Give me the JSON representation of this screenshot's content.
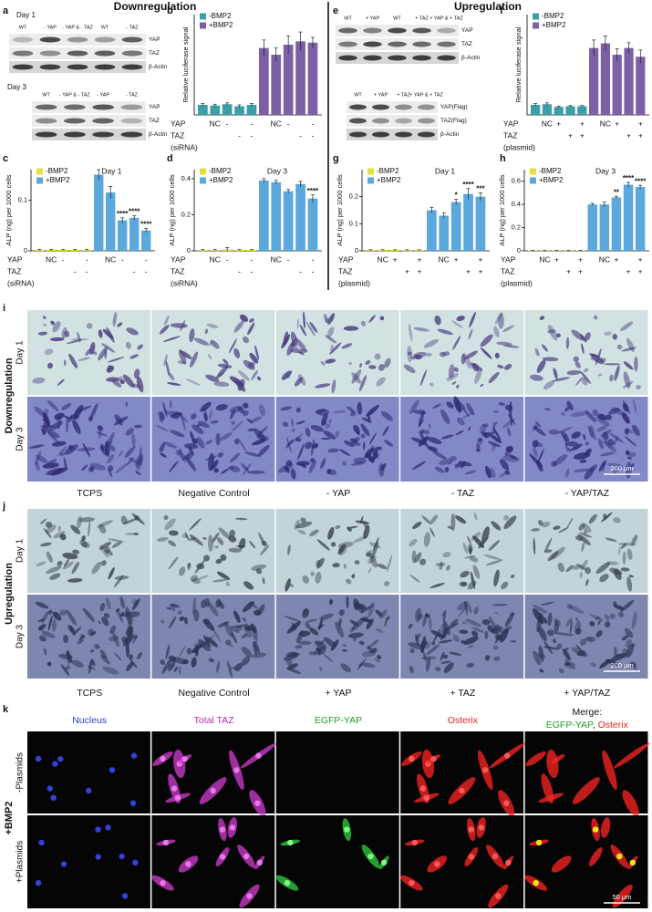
{
  "headers": {
    "left": "Downregulation",
    "right": "Upregulation"
  },
  "panel_labels": [
    "a",
    "b",
    "c",
    "d",
    "e",
    "f",
    "g",
    "h",
    "i",
    "j",
    "k"
  ],
  "blots": [
    {
      "title": "Day 1",
      "lanes": [
        "WT",
        "- YAP",
        "- YAP & - TAZ",
        "WT",
        "- TAZ"
      ],
      "rows": [
        "YAP",
        "TAZ",
        "β-Actin"
      ]
    },
    {
      "title": "Day 3",
      "lanes": [
        "WT",
        "- YAP & - TAZ",
        "- YAP",
        "- TAZ"
      ],
      "rows": [
        "YAP",
        "TAZ",
        "β-Actin"
      ]
    },
    {
      "lanes": [
        "WT",
        "+ YAP",
        "WT",
        "+ TAZ",
        "+ YAP & + TAZ"
      ],
      "rows": [
        "YAP",
        "TAZ",
        "β-Actin"
      ]
    },
    {
      "lanes": [
        "WT",
        "+ YAP",
        "+ TAZ",
        "+ YAP & + TAZ"
      ],
      "rows": [
        "YAP(Flag)",
        "TAZ(Flag)",
        "β-Actin"
      ]
    }
  ],
  "chart_data": [
    {
      "type": "bar",
      "ylabel": "Relative luciferase signal",
      "ylim": [
        0,
        1.5
      ],
      "series": [
        {
          "name": "-BMP2",
          "color": "#3c9ea6",
          "values": [
            0.15,
            0.14,
            0.16,
            0.13,
            0.15
          ],
          "errors": [
            0.02,
            0.02,
            0.02,
            0.02,
            0.02
          ]
        },
        {
          "name": "+BMP2",
          "color": "#7d5fa6",
          "values": [
            1.0,
            0.9,
            1.05,
            1.1,
            1.08
          ],
          "errors": [
            0.12,
            0.1,
            0.13,
            0.14,
            0.08
          ]
        }
      ],
      "conditions": [
        {
          "name": "YAP",
          "labels": [
            null,
            "NC",
            "-",
            null,
            "-"
          ]
        },
        {
          "name": "TAZ",
          "labels": [
            null,
            null,
            null,
            "-",
            "-"
          ]
        }
      ],
      "condition_note": "(siRNA)"
    },
    {
      "type": "bar",
      "title": "Day 1",
      "ylabel": "ALP (ng) per 1000 cells",
      "ylim": [
        0,
        0.16
      ],
      "yticks": [
        0,
        0.1
      ],
      "series": [
        {
          "name": "-BMP2",
          "color": "#e6e03c",
          "values": [
            0.002,
            0.002,
            0.002,
            0.002,
            0.002
          ],
          "errors": [
            0.001,
            0.001,
            0.001,
            0.001,
            0.001
          ]
        },
        {
          "name": "+BMP2",
          "color": "#5ca7dc",
          "values": [
            0.15,
            0.115,
            0.06,
            0.065,
            0.04
          ],
          "errors": [
            0.01,
            0.012,
            0.005,
            0.004,
            0.004
          ],
          "significance": [
            null,
            null,
            "****",
            "****",
            "****"
          ]
        }
      ],
      "conditions": [
        {
          "name": "YAP",
          "labels": [
            null,
            "NC",
            "-",
            null,
            "-"
          ]
        },
        {
          "name": "TAZ",
          "labels": [
            null,
            null,
            null,
            "-",
            "-"
          ]
        }
      ],
      "condition_note": "(siRNA)"
    },
    {
      "type": "bar",
      "title": "Day 3",
      "ylabel": "ALP (ng) per 1000 cells",
      "ylim": [
        0,
        0.45
      ],
      "yticks": [
        0,
        0.2,
        0.4
      ],
      "series": [
        {
          "name": "-BMP2",
          "color": "#e6e03c",
          "values": [
            0.005,
            0.005,
            0.008,
            0.005,
            0.005
          ],
          "errors": [
            0.002,
            0.002,
            0.01,
            0.002,
            0.002
          ]
        },
        {
          "name": "+BMP2",
          "color": "#5ca7dc",
          "values": [
            0.39,
            0.38,
            0.33,
            0.37,
            0.29
          ],
          "errors": [
            0.01,
            0.01,
            0.01,
            0.015,
            0.02
          ],
          "significance": [
            null,
            null,
            null,
            null,
            "****"
          ]
        }
      ],
      "conditions": [
        {
          "name": "YAP",
          "labels": [
            null,
            "NC",
            "-",
            null,
            "-"
          ]
        },
        {
          "name": "TAZ",
          "labels": [
            null,
            null,
            null,
            "-",
            "-"
          ]
        }
      ],
      "condition_note": "(siRNA)"
    },
    {
      "type": "bar",
      "ylabel": "Relative luciferase signal",
      "ylim": [
        0,
        1.5
      ],
      "series": [
        {
          "name": "-BMP2",
          "color": "#3c9ea6",
          "values": [
            0.15,
            0.16,
            0.12,
            0.13,
            0.13
          ],
          "errors": [
            0.02,
            0.02,
            0.01,
            0.01,
            0.01
          ]
        },
        {
          "name": "+BMP2",
          "color": "#7d5fa6",
          "values": [
            1.0,
            1.07,
            0.9,
            1.0,
            0.87
          ],
          "errors": [
            0.12,
            0.11,
            0.09,
            0.08,
            0.1
          ]
        }
      ],
      "conditions": [
        {
          "name": "YAP",
          "labels": [
            null,
            "NC",
            "+",
            null,
            "+"
          ]
        },
        {
          "name": "TAZ",
          "labels": [
            null,
            null,
            null,
            "+",
            "+"
          ]
        }
      ],
      "condition_note": "(plasmid)"
    },
    {
      "type": "bar",
      "title": "Day 1",
      "ylabel": "ALP (ng) per 1000 cells",
      "ylim": [
        0,
        0.3
      ],
      "yticks": [
        0,
        0.1,
        0.2
      ],
      "series": [
        {
          "name": "-BMP2",
          "color": "#e6e03c",
          "values": [
            0.003,
            0.003,
            0.003,
            0.003,
            0.003
          ],
          "errors": [
            0.001,
            0.001,
            0.001,
            0.001,
            0.001
          ]
        },
        {
          "name": "+BMP2",
          "color": "#5ca7dc",
          "values": [
            0.15,
            0.13,
            0.18,
            0.21,
            0.2
          ],
          "errors": [
            0.01,
            0.01,
            0.01,
            0.02,
            0.015
          ],
          "significance": [
            null,
            null,
            "*",
            "****",
            "***"
          ]
        }
      ],
      "conditions": [
        {
          "name": "YAP",
          "labels": [
            null,
            "NC",
            "+",
            null,
            "+"
          ]
        },
        {
          "name": "TAZ",
          "labels": [
            null,
            null,
            null,
            "+",
            "+"
          ]
        }
      ],
      "condition_note": "(plasmid)"
    },
    {
      "type": "bar",
      "title": "Day 3",
      "ylabel": "ALP (ng) per 1000 cells",
      "ylim": [
        0,
        0.7
      ],
      "yticks": [
        0,
        0.2,
        0.4,
        0.6
      ],
      "series": [
        {
          "name": "-BMP2",
          "color": "#e6e03c",
          "values": [
            0.004,
            0.004,
            0.004,
            0.004,
            0.004
          ],
          "errors": [
            0.001,
            0.001,
            0.001,
            0.001,
            0.001
          ]
        },
        {
          "name": "+BMP2",
          "color": "#5ca7dc",
          "values": [
            0.4,
            0.4,
            0.46,
            0.57,
            0.55
          ],
          "errors": [
            0.01,
            0.02,
            0.01,
            0.02,
            0.015
          ],
          "significance": [
            null,
            null,
            "**",
            "****",
            "****"
          ]
        }
      ],
      "conditions": [
        {
          "name": "YAP",
          "labels": [
            null,
            "NC",
            "+",
            null,
            "+"
          ]
        },
        {
          "name": "TAZ",
          "labels": [
            null,
            null,
            null,
            "+",
            "+"
          ]
        }
      ],
      "condition_note": "(plasmid)"
    }
  ],
  "micrographs": [
    {
      "section": "Downregulation",
      "rows": [
        "Day 1",
        "Day 3"
      ],
      "columns": [
        "TCPS",
        "Negative Control",
        "- YAP",
        "- TAZ",
        "- YAP/TAZ"
      ],
      "scale_bar": "200 μm"
    },
    {
      "section": "Upregulation",
      "rows": [
        "Day 1",
        "Day 3"
      ],
      "columns": [
        "TCPS",
        "Negative Control",
        "+ YAP",
        "+ TAZ",
        "+ YAP/TAZ"
      ],
      "scale_bar": "200 μm"
    }
  ],
  "fluorescence": {
    "group": "+BMP2",
    "rows": [
      "-Plasmids",
      "+Plasmids"
    ],
    "columns": [
      "Nucleus",
      "Total TAZ",
      "EGFP-YAP",
      "Osterix"
    ],
    "merge_title": "Merge:",
    "merge_parts": [
      "EGFP-YAP",
      ", ",
      "Osterix"
    ],
    "scale_bar": "50 μm"
  }
}
